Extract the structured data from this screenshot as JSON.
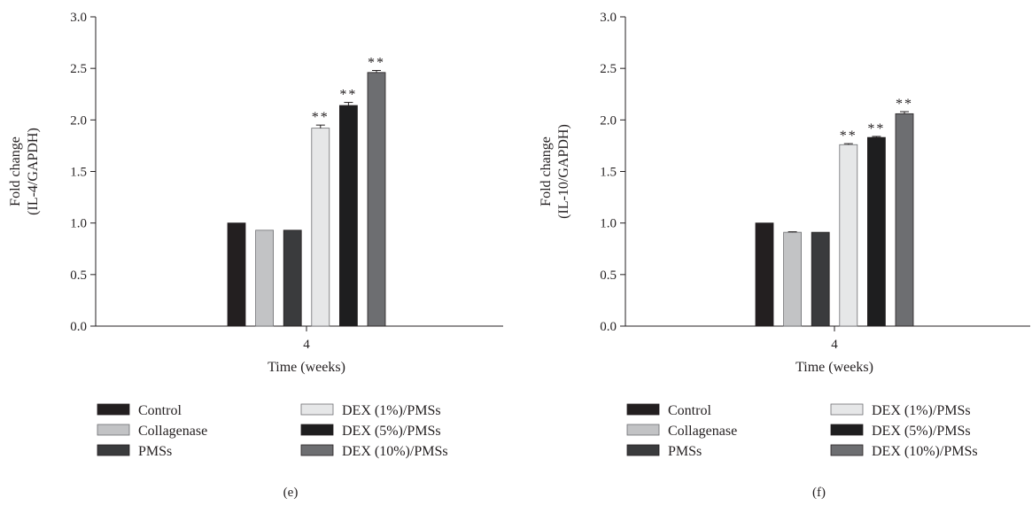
{
  "legend": {
    "entries": [
      {
        "label": "Control",
        "color": "#231f20"
      },
      {
        "label": "Collagenase",
        "color": "#c2c3c5"
      },
      {
        "label": "PMSs",
        "color": "#3a3b3d"
      },
      {
        "label": "DEX (1%)/PMSs",
        "color": "#e6e7e8"
      },
      {
        "label": "DEX (5%)/PMSs",
        "color": "#1e1e1f"
      },
      {
        "label": "DEX (10%)/PMSs",
        "color": "#6d6e71"
      }
    ]
  },
  "chart_data": [
    {
      "type": "bar",
      "panel_label": "(e)",
      "xlabel": "Time (weeks)",
      "ylabel": [
        "Fold change",
        "(IL-4/GAPDH)"
      ],
      "ylim": [
        0,
        3.0
      ],
      "yticks": [
        "0.0",
        "0.5",
        "1.0",
        "1.5",
        "2.0",
        "2.5",
        "3.0"
      ],
      "categories": [
        "4"
      ],
      "series": [
        {
          "name": "Control",
          "values": [
            1.0
          ],
          "error": [
            0.0
          ],
          "annotation": ""
        },
        {
          "name": "Collagenase",
          "values": [
            0.93
          ],
          "error": [
            0.0
          ],
          "annotation": ""
        },
        {
          "name": "PMSs",
          "values": [
            0.93
          ],
          "error": [
            0.0
          ],
          "annotation": ""
        },
        {
          "name": "DEX (1%)/PMSs",
          "values": [
            1.92
          ],
          "error": [
            0.03
          ],
          "annotation": "**"
        },
        {
          "name": "DEX (5%)/PMSs",
          "values": [
            2.14
          ],
          "error": [
            0.03
          ],
          "annotation": "**"
        },
        {
          "name": "DEX (10%)/PMSs",
          "values": [
            2.46
          ],
          "error": [
            0.02
          ],
          "annotation": "**"
        }
      ]
    },
    {
      "type": "bar",
      "panel_label": "(f)",
      "xlabel": "Time (weeks)",
      "ylabel": [
        "Fold change",
        "(IL-10/GAPDH)"
      ],
      "ylim": [
        0,
        3.0
      ],
      "yticks": [
        "0.0",
        "0.5",
        "1.0",
        "1.5",
        "2.0",
        "2.5",
        "3.0"
      ],
      "categories": [
        "4"
      ],
      "series": [
        {
          "name": "Control",
          "values": [
            1.0
          ],
          "error": [
            0.0
          ],
          "annotation": ""
        },
        {
          "name": "Collagenase",
          "values": [
            0.91
          ],
          "error": [
            0.005
          ],
          "annotation": ""
        },
        {
          "name": "PMSs",
          "values": [
            0.91
          ],
          "error": [
            0.0
          ],
          "annotation": ""
        },
        {
          "name": "DEX (1%)/PMSs",
          "values": [
            1.76
          ],
          "error": [
            0.01
          ],
          "annotation": "**"
        },
        {
          "name": "DEX (5%)/PMSs",
          "values": [
            1.83
          ],
          "error": [
            0.01
          ],
          "annotation": "**"
        },
        {
          "name": "DEX (10%)/PMSs",
          "values": [
            2.06
          ],
          "error": [
            0.02
          ],
          "annotation": "**"
        }
      ]
    }
  ]
}
